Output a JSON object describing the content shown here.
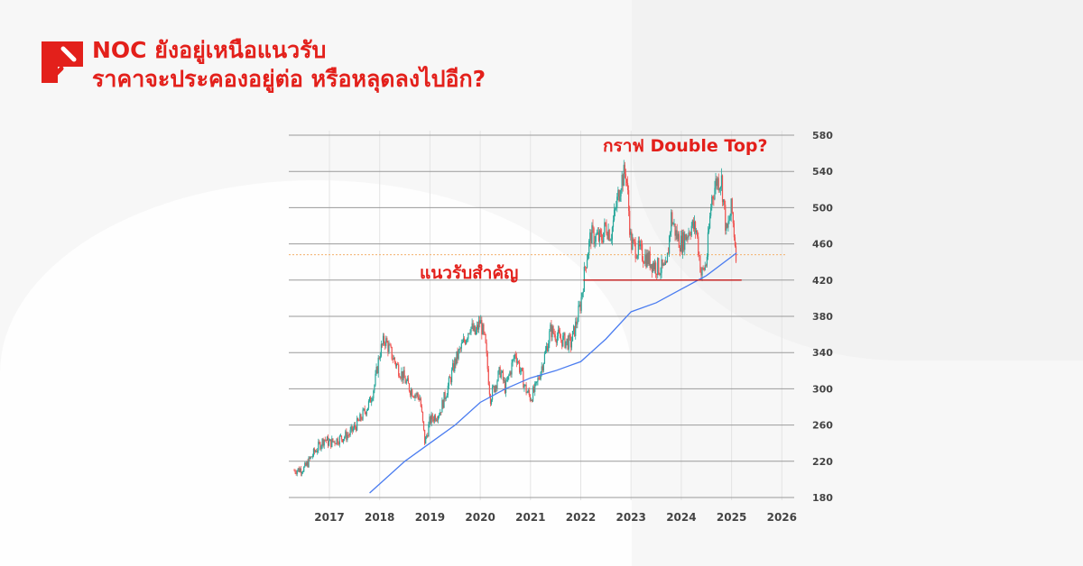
{
  "header": {
    "title_line1": "NOC ยังอยู่เหนือแนวรับ",
    "title_line2": "ราคาจะประคองอยู่ต่อ หรือหลุดลงไปอีก?",
    "brand_color": "#e3201b"
  },
  "chart_data": {
    "type": "candlestick",
    "title": "",
    "xlabel": "",
    "ylabel": "",
    "x_ticks": [
      "2017",
      "2018",
      "2019",
      "2020",
      "2021",
      "2022",
      "2023",
      "2024",
      "2025",
      "2026"
    ],
    "y_ticks": [
      180,
      220,
      260,
      300,
      340,
      380,
      420,
      460,
      500,
      540,
      580
    ],
    "ylim": [
      180,
      580
    ],
    "xlim": [
      2016.3,
      2026.2
    ],
    "grid": true,
    "y_axis_side": "right",
    "annotations": {
      "double_top": "กราฟ Double Top?",
      "support": "แนวรับสำคัญ",
      "support_level": 420,
      "current_price_line": 448
    },
    "colors": {
      "up": "#26a69a",
      "down": "#ef5350",
      "ma": "#4a7cf0",
      "support": "#c62828",
      "current": "#f4b16b"
    },
    "price_close": {
      "x": [
        2016.3,
        2016.5,
        2016.7,
        2016.9,
        2017.0,
        2017.2,
        2017.4,
        2017.6,
        2017.8,
        2017.9,
        2018.0,
        2018.1,
        2018.3,
        2018.5,
        2018.6,
        2018.8,
        2018.9,
        2019.0,
        2019.2,
        2019.4,
        2019.5,
        2019.7,
        2019.8,
        2019.9,
        2020.0,
        2020.1,
        2020.2,
        2020.4,
        2020.5,
        2020.7,
        2020.8,
        2020.9,
        2021.0,
        2021.1,
        2021.3,
        2021.4,
        2021.6,
        2021.8,
        2021.9,
        2022.0,
        2022.1,
        2022.2,
        2022.4,
        2022.5,
        2022.6,
        2022.8,
        2022.9,
        2023.0,
        2023.2,
        2023.4,
        2023.5,
        2023.7,
        2023.8,
        2023.9,
        2024.0,
        2024.2,
        2024.3,
        2024.4,
        2024.5,
        2024.6,
        2024.7,
        2024.8,
        2024.9,
        2025.0,
        2025.1
      ],
      "y": [
        210,
        212,
        230,
        245,
        240,
        245,
        250,
        265,
        285,
        305,
        340,
        355,
        330,
        310,
        300,
        290,
        240,
        265,
        275,
        310,
        330,
        355,
        370,
        360,
        375,
        350,
        290,
        320,
        300,
        340,
        320,
        300,
        290,
        300,
        340,
        365,
        355,
        350,
        370,
        395,
        440,
        470,
        465,
        480,
        470,
        530,
        540,
        460,
        450,
        440,
        435,
        430,
        490,
        470,
        460,
        480,
        475,
        425,
        440,
        510,
        530,
        530,
        470,
        500,
        445
      ]
    },
    "moving_average": {
      "x": [
        2017.8,
        2018.5,
        2019.0,
        2019.5,
        2020.0,
        2020.5,
        2021.0,
        2021.5,
        2022.0,
        2022.5,
        2023.0,
        2023.5,
        2024.0,
        2024.5,
        2025.1
      ],
      "y": [
        185,
        220,
        240,
        260,
        285,
        300,
        312,
        320,
        330,
        355,
        385,
        395,
        410,
        425,
        450
      ]
    }
  }
}
